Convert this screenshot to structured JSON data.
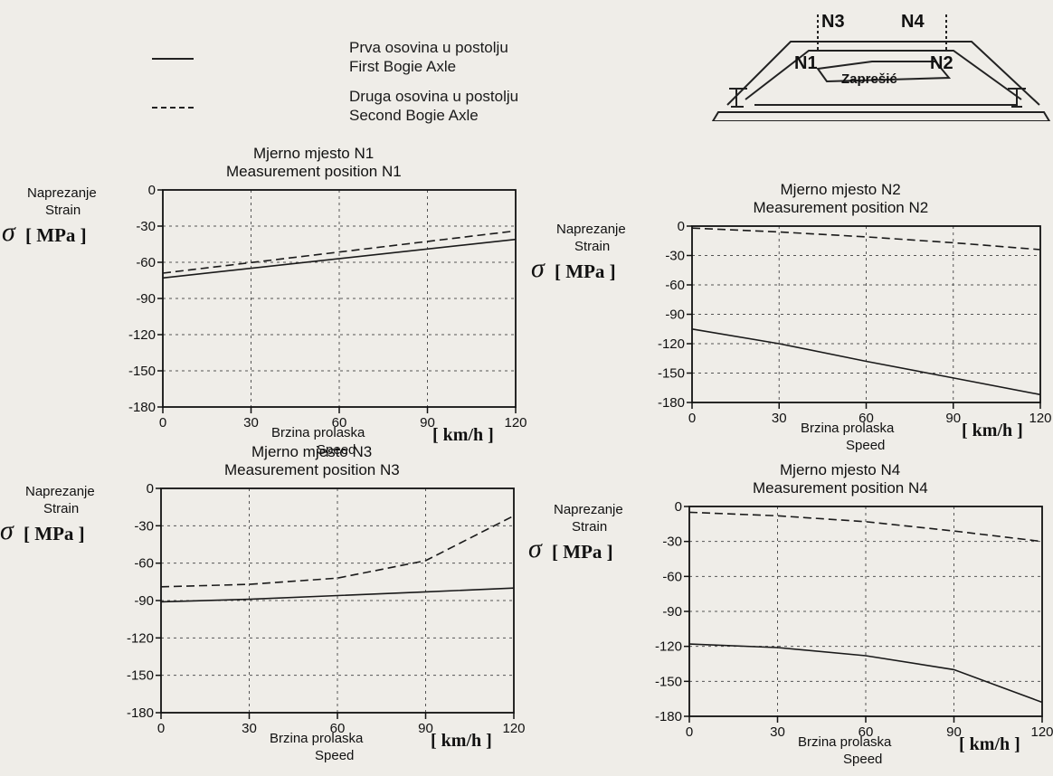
{
  "legend": {
    "first": [
      "Prva osovina u postolju",
      "First Bogie Axle"
    ],
    "second": [
      "Druga osovina u postolju",
      "Second Bogie Axle"
    ]
  },
  "diagram": {
    "labels": [
      "N1",
      "N2",
      "N3",
      "N4",
      "Zaprešić"
    ]
  },
  "common": {
    "ylabel_hr": "Naprezanje",
    "ylabel_en": "Strain",
    "sigma": "σ",
    "yunit": "[ MPa ]",
    "xlabel_hr": "Brzina prolaska",
    "xlabel_en": "Speed",
    "xunit": "[ km/h ]"
  },
  "chart_data": [
    {
      "type": "line",
      "title": [
        "Mjerno mjesto N1",
        "Measurement position N1"
      ],
      "ylabel": "Naprezanje Strain σ [ MPa ]",
      "xlabel": "Brzina prolaska Speed [ km/h ]",
      "xlim": [
        0,
        120
      ],
      "ylim": [
        -180,
        0
      ],
      "xticks": [
        0,
        30,
        60,
        90,
        120
      ],
      "yticks": [
        0,
        -30,
        -60,
        -90,
        -120,
        -150,
        -180
      ],
      "series": [
        {
          "name": "First Bogie Axle",
          "style": "solid",
          "x": [
            0,
            120
          ],
          "y": [
            -73,
            -41
          ]
        },
        {
          "name": "Second Bogie Axle",
          "style": "dashed",
          "x": [
            0,
            120
          ],
          "y": [
            -69,
            -34
          ]
        }
      ]
    },
    {
      "type": "line",
      "title": [
        "Mjerno mjesto N2",
        "Measurement position N2"
      ],
      "ylabel": "Naprezanje Strain σ [ MPa ]",
      "xlabel": "Brzina prolaska Speed [ km/h ]",
      "xlim": [
        0,
        120
      ],
      "ylim": [
        -180,
        0
      ],
      "xticks": [
        0,
        30,
        60,
        90,
        120
      ],
      "yticks": [
        0,
        -30,
        -60,
        -90,
        -120,
        -150,
        -180
      ],
      "series": [
        {
          "name": "First Bogie Axle",
          "style": "solid",
          "x": [
            0,
            30,
            60,
            90,
            120
          ],
          "y": [
            -105,
            -120,
            -138,
            -155,
            -172
          ]
        },
        {
          "name": "Second Bogie Axle",
          "style": "dashed",
          "x": [
            0,
            30,
            60,
            90,
            120
          ],
          "y": [
            -2,
            -6,
            -11,
            -17,
            -24
          ]
        }
      ]
    },
    {
      "type": "line",
      "title": [
        "Mjerno mjesto N3",
        "Measurement position N3"
      ],
      "ylabel": "Naprezanje Strain σ [ MPa ]",
      "xlabel": "Brzina prolaska Speed [ km/h ]",
      "xlim": [
        0,
        120
      ],
      "ylim": [
        -180,
        0
      ],
      "xticks": [
        0,
        30,
        60,
        90,
        120
      ],
      "yticks": [
        0,
        -30,
        -60,
        -90,
        -120,
        -150,
        -180
      ],
      "series": [
        {
          "name": "First Bogie Axle",
          "style": "solid",
          "x": [
            0,
            30,
            60,
            90,
            120
          ],
          "y": [
            -91,
            -89,
            -86,
            -83,
            -80
          ]
        },
        {
          "name": "Second Bogie Axle",
          "style": "dashed",
          "x": [
            0,
            30,
            60,
            90,
            120
          ],
          "y": [
            -79,
            -77,
            -72,
            -58,
            -22
          ]
        }
      ]
    },
    {
      "type": "line",
      "title": [
        "Mjerno mjesto N4",
        "Measurement position N4"
      ],
      "ylabel": "Naprezanje Strain σ [ MPa ]",
      "xlabel": "Brzina prolaska Speed [ km/h ]",
      "xlim": [
        0,
        120
      ],
      "ylim": [
        -180,
        0
      ],
      "xticks": [
        0,
        30,
        60,
        90,
        120
      ],
      "yticks": [
        0,
        -30,
        -60,
        -90,
        -120,
        -150,
        -180
      ],
      "series": [
        {
          "name": "First Bogie Axle",
          "style": "solid",
          "x": [
            0,
            30,
            60,
            90,
            120
          ],
          "y": [
            -118,
            -121,
            -128,
            -140,
            -168
          ]
        },
        {
          "name": "Second Bogie Axle",
          "style": "dashed",
          "x": [
            0,
            30,
            60,
            90,
            120
          ],
          "y": [
            -5,
            -8,
            -13,
            -21,
            -30
          ]
        }
      ]
    }
  ]
}
